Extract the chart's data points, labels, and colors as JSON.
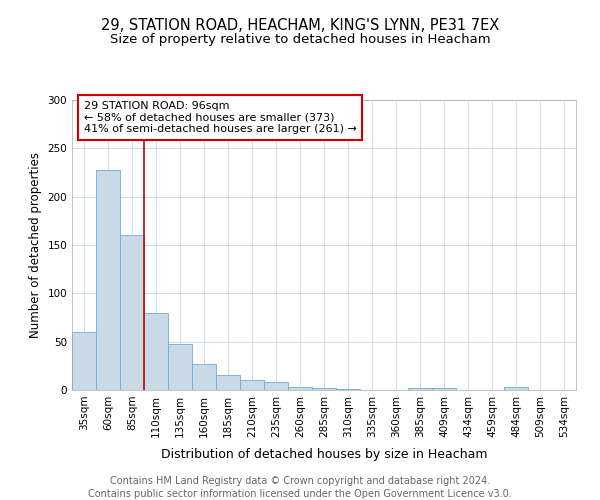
{
  "title1": "29, STATION ROAD, HEACHAM, KING'S LYNN, PE31 7EX",
  "title2": "Size of property relative to detached houses in Heacham",
  "xlabel": "Distribution of detached houses by size in Heacham",
  "ylabel": "Number of detached properties",
  "categories": [
    "35sqm",
    "60sqm",
    "85sqm",
    "110sqm",
    "135sqm",
    "160sqm",
    "185sqm",
    "210sqm",
    "235sqm",
    "260sqm",
    "285sqm",
    "310sqm",
    "335sqm",
    "360sqm",
    "385sqm",
    "409sqm",
    "434sqm",
    "459sqm",
    "484sqm",
    "509sqm",
    "534sqm"
  ],
  "values": [
    60,
    228,
    160,
    80,
    48,
    27,
    16,
    10,
    8,
    3,
    2,
    1,
    0,
    0,
    2,
    2,
    0,
    0,
    3,
    0,
    0
  ],
  "bar_color": "#c9d9e8",
  "bar_edge_color": "#6aaed6",
  "vline_x": 2.5,
  "vline_color": "#cc0000",
  "annotation_text": "29 STATION ROAD: 96sqm\n← 58% of detached houses are smaller (373)\n41% of semi-detached houses are larger (261) →",
  "annotation_box_color": "#ffffff",
  "annotation_box_edge": "#cc0000",
  "ylim": [
    0,
    300
  ],
  "yticks": [
    0,
    50,
    100,
    150,
    200,
    250,
    300
  ],
  "footnote1": "Contains HM Land Registry data © Crown copyright and database right 2024.",
  "footnote2": "Contains public sector information licensed under the Open Government Licence v3.0.",
  "bg_color": "#ffffff",
  "grid_color": "#c8d8e8",
  "title1_fontsize": 10.5,
  "title2_fontsize": 9.5,
  "xlabel_fontsize": 9,
  "ylabel_fontsize": 8.5,
  "tick_fontsize": 7.5,
  "annotation_fontsize": 8,
  "footnote_fontsize": 7
}
